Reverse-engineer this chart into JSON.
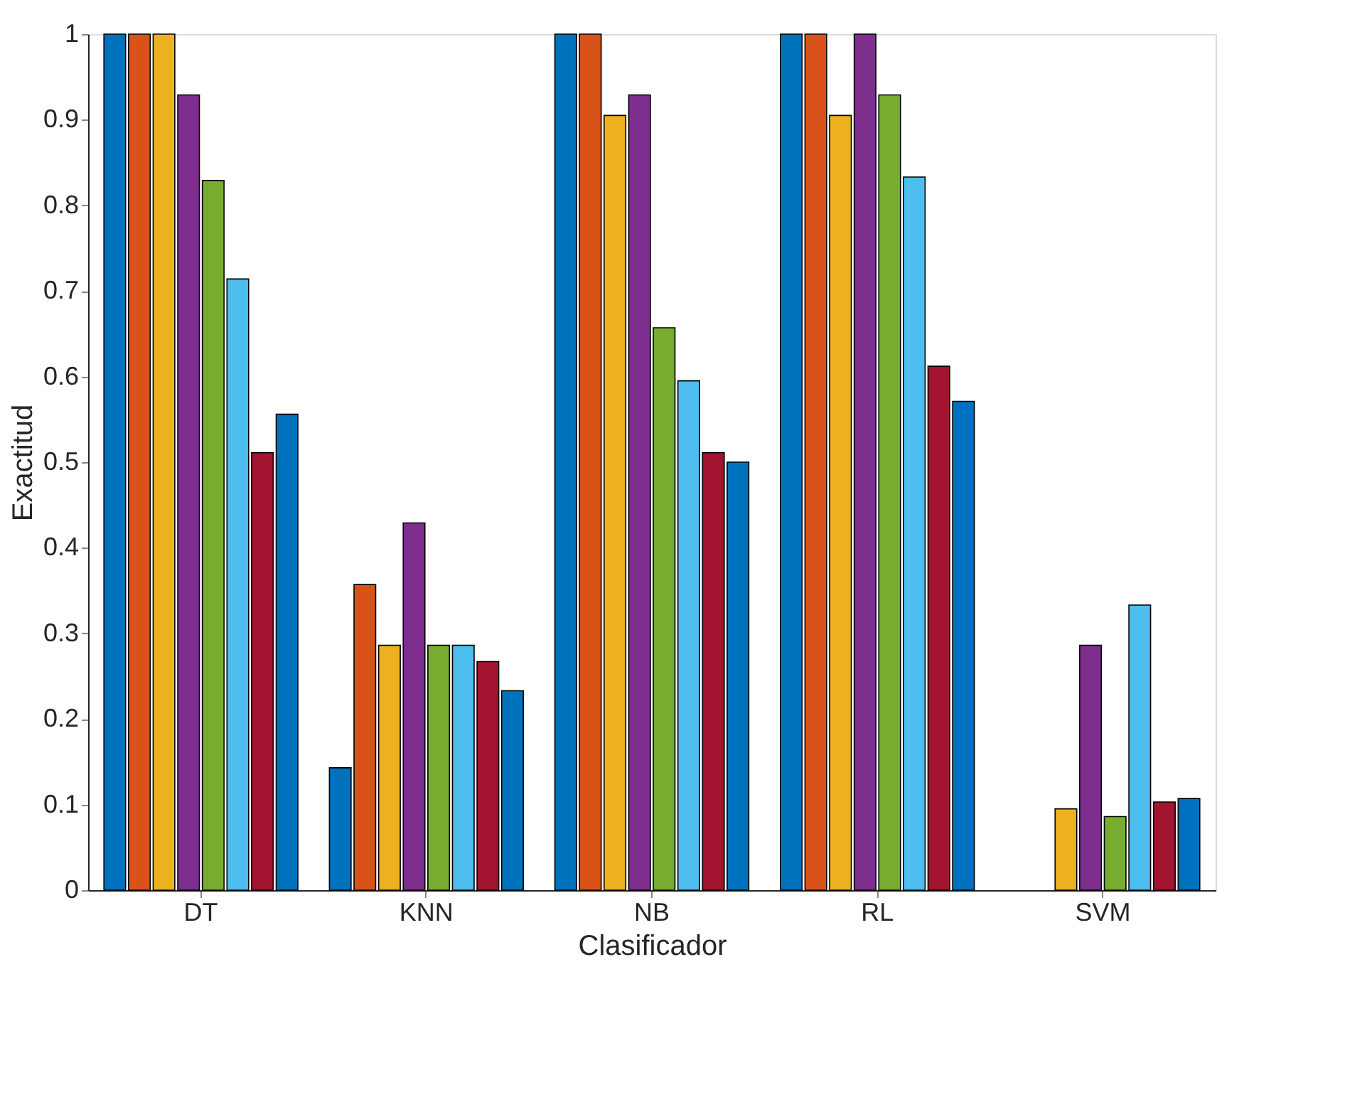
{
  "chart_data": {
    "type": "bar",
    "xlabel": "Clasificador",
    "ylabel": "Exactitud",
    "categories": [
      "DT",
      "KNN",
      "NB",
      "RL",
      "SVM"
    ],
    "series": [
      {
        "color": "#0072bd",
        "values": [
          1,
          0.143,
          1,
          1,
          0
        ]
      },
      {
        "color": "#d95319",
        "values": [
          1,
          0.357,
          1,
          1,
          0
        ]
      },
      {
        "color": "#edb120",
        "values": [
          1,
          0.286,
          0.905,
          0.905,
          0.095
        ]
      },
      {
        "color": "#7e2f8e",
        "values": [
          0.929,
          0.429,
          0.929,
          1,
          0.286
        ]
      },
      {
        "color": "#77ac30",
        "values": [
          0.829,
          0.286,
          0.657,
          0.929,
          0.086
        ]
      },
      {
        "color": "#4dbeee",
        "values": [
          0.714,
          0.286,
          0.595,
          0.833,
          0.333
        ]
      },
      {
        "color": "#a2142f",
        "values": [
          0.511,
          0.267,
          0.511,
          0.612,
          0.103
        ]
      },
      {
        "color": "#0072bd",
        "values": [
          0.556,
          0.233,
          0.5,
          0.571,
          0.107
        ]
      }
    ],
    "ylim": [
      0,
      1
    ],
    "yticks": [
      0,
      0.1,
      0.2,
      0.3,
      0.4,
      0.5,
      0.6,
      0.7,
      0.8,
      0.9,
      1
    ],
    "grid": false,
    "legend": false
  }
}
